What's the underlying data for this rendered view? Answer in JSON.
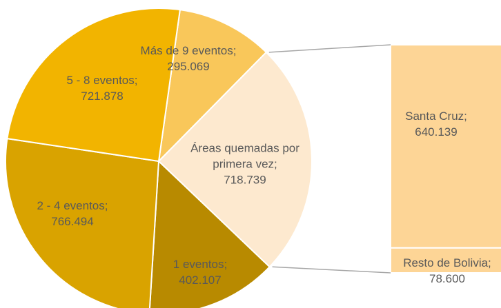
{
  "chart_data": {
    "type": "pie-of-bar",
    "categories": [
      "Más de 9 eventos;",
      "Áreas quemadas por primera vez;",
      "1 eventos;",
      "2 - 4 eventos;",
      "5 - 8 eventos;"
    ],
    "values": [
      295069,
      718739,
      402107,
      766494,
      721878
    ],
    "value_labels": [
      "295.069",
      "718.739",
      "402.107",
      "766.494",
      "721.878"
    ],
    "colors": [
      "#f9c75a",
      "#fde9cf",
      "#b88a00",
      "#d9a300",
      "#f2b400"
    ],
    "secondary": {
      "categories": [
        "Santa Cruz;",
        "Resto de Bolivia;"
      ],
      "values": [
        640139,
        78600
      ],
      "value_labels": [
        "640.139",
        "78.600"
      ],
      "color": "#fdd596"
    }
  }
}
